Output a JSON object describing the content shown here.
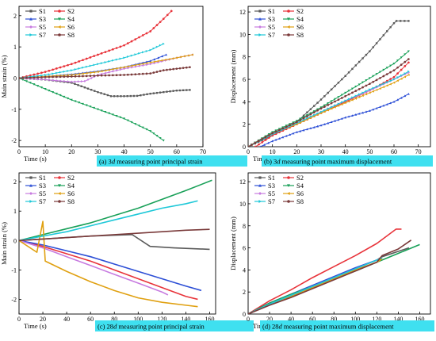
{
  "figure": {
    "background": "#ffffff",
    "caption_bg": "#3fe0f0"
  },
  "series_styles": [
    {
      "name": "S1",
      "color": "#5a5a5a",
      "marker": "square"
    },
    {
      "name": "S2",
      "color": "#e8333a",
      "marker": "circle"
    },
    {
      "name": "S3",
      "color": "#2d4fd6",
      "marker": "triangle-up"
    },
    {
      "name": "S4",
      "color": "#18a058",
      "marker": "triangle-down"
    },
    {
      "name": "S5",
      "color": "#c77be0",
      "marker": "diamond"
    },
    {
      "name": "S6",
      "color": "#e0a010",
      "marker": "triangle-left"
    },
    {
      "name": "S7",
      "color": "#1ec8d8",
      "marker": "triangle-right"
    },
    {
      "name": "S8",
      "color": "#7a3a3a",
      "marker": "hexagon"
    }
  ],
  "chart_data": [
    {
      "id": "a",
      "type": "line",
      "caption_prefix": "(a)  3",
      "caption_italic": "d",
      "caption_suffix": " measuring point principal strain",
      "xlabel": "Time (s)",
      "ylabel": "Main strain (%)",
      "xlim": [
        0,
        70
      ],
      "ylim": [
        -2.2,
        2.3
      ],
      "xticks": [
        0,
        10,
        20,
        30,
        40,
        50,
        60,
        70
      ],
      "yticks": [
        -2,
        -1,
        0,
        1,
        2
      ],
      "legend_placement": "top-left",
      "grid": false,
      "markers": true,
      "series": [
        {
          "name": "S1",
          "x": [
            0,
            10,
            20,
            25,
            30,
            35,
            40,
            45,
            50,
            55,
            60,
            65
          ],
          "y": [
            0,
            -0.05,
            -0.15,
            -0.3,
            -0.45,
            -0.58,
            -0.58,
            -0.57,
            -0.5,
            -0.45,
            -0.4,
            -0.38
          ]
        },
        {
          "name": "S2",
          "x": [
            0,
            10,
            20,
            30,
            40,
            50,
            55,
            58
          ],
          "y": [
            0,
            0.2,
            0.45,
            0.75,
            1.05,
            1.5,
            1.9,
            2.15
          ]
        },
        {
          "name": "S3",
          "x": [
            0,
            10,
            20,
            30,
            40,
            50,
            56
          ],
          "y": [
            0,
            0.05,
            0.12,
            0.22,
            0.35,
            0.55,
            0.75
          ]
        },
        {
          "name": "S4",
          "x": [
            0,
            10,
            20,
            30,
            40,
            50,
            55
          ],
          "y": [
            0,
            -0.35,
            -0.7,
            -1.0,
            -1.3,
            -1.7,
            -2.0
          ]
        },
        {
          "name": "S5",
          "x": [
            0,
            10,
            20,
            25,
            30,
            40,
            50,
            60,
            66
          ],
          "y": [
            0,
            -0.05,
            -0.12,
            -0.1,
            0.1,
            0.3,
            0.45,
            0.65,
            0.75
          ]
        },
        {
          "name": "S6",
          "x": [
            0,
            10,
            20,
            30,
            40,
            50,
            60,
            66
          ],
          "y": [
            0,
            0.05,
            0.1,
            0.2,
            0.35,
            0.5,
            0.65,
            0.75
          ]
        },
        {
          "name": "S7",
          "x": [
            0,
            10,
            20,
            30,
            40,
            50,
            55
          ],
          "y": [
            0,
            0.1,
            0.25,
            0.45,
            0.65,
            0.9,
            1.1
          ]
        },
        {
          "name": "S8",
          "x": [
            0,
            10,
            20,
            30,
            40,
            50,
            55,
            60,
            65
          ],
          "y": [
            0,
            0.03,
            0.05,
            0.08,
            0.1,
            0.15,
            0.25,
            0.3,
            0.35
          ]
        }
      ]
    },
    {
      "id": "b",
      "type": "line",
      "caption_prefix": "(b)  3",
      "caption_italic": "d",
      "caption_suffix": " measuring point maximum displacement",
      "xlabel": "Time (s)",
      "ylabel": "Displacement (mm)",
      "xlim": [
        0,
        75
      ],
      "ylim": [
        0,
        12.5
      ],
      "xticks": [
        0,
        10,
        20,
        30,
        40,
        50,
        60,
        70
      ],
      "yticks": [
        0,
        2,
        4,
        6,
        8,
        10,
        12
      ],
      "legend_placement": "top-left",
      "grid": false,
      "markers": true,
      "series": [
        {
          "name": "S1",
          "x": [
            0,
            10,
            20,
            30,
            40,
            50,
            60,
            61,
            66
          ],
          "y": [
            0,
            1.0,
            2.2,
            4.2,
            6.3,
            8.5,
            11.0,
            11.2,
            11.2
          ]
        },
        {
          "name": "S2",
          "x": [
            3,
            10,
            20,
            30,
            40,
            50,
            60,
            66
          ],
          "y": [
            0,
            1.0,
            2.0,
            3.0,
            4.0,
            5.0,
            6.2,
            7.5
          ]
        },
        {
          "name": "S3",
          "x": [
            5,
            10,
            20,
            30,
            40,
            50,
            60,
            66
          ],
          "y": [
            0,
            0.5,
            1.3,
            1.9,
            2.6,
            3.2,
            4.0,
            4.7
          ]
        },
        {
          "name": "S4",
          "x": [
            0,
            10,
            20,
            30,
            40,
            50,
            60,
            66
          ],
          "y": [
            0,
            1.3,
            2.3,
            3.5,
            4.8,
            6.1,
            7.4,
            8.5
          ]
        },
        {
          "name": "S5",
          "x": [
            0,
            10,
            20,
            30,
            40,
            50,
            60,
            66
          ],
          "y": [
            0,
            1.2,
            2.1,
            3.1,
            4.1,
            5.0,
            6.0,
            6.6
          ]
        },
        {
          "name": "S6",
          "x": [
            0,
            10,
            20,
            30,
            40,
            50,
            60,
            66
          ],
          "y": [
            0,
            1.2,
            2.0,
            3.0,
            3.9,
            4.8,
            5.7,
            6.4
          ]
        },
        {
          "name": "S7",
          "x": [
            0,
            10,
            20,
            30,
            40,
            50,
            60,
            66
          ],
          "y": [
            0,
            1.1,
            2.1,
            3.1,
            4.1,
            5.1,
            6.0,
            6.7
          ]
        },
        {
          "name": "S8",
          "x": [
            0,
            10,
            20,
            30,
            40,
            50,
            60,
            66
          ],
          "y": [
            0,
            1.2,
            2.2,
            3.4,
            4.5,
            5.6,
            6.8,
            7.8
          ]
        }
      ]
    },
    {
      "id": "c",
      "type": "line",
      "caption_prefix": "(c)  28",
      "caption_italic": "d",
      "caption_suffix": " measuring point principal strain",
      "xlabel": "Time (s)",
      "ylabel": "Main strain (%)",
      "xlim": [
        0,
        165
      ],
      "ylim": [
        -2.5,
        2.3
      ],
      "xticks": [
        0,
        20,
        40,
        60,
        80,
        100,
        120,
        140,
        160
      ],
      "yticks": [
        -2,
        -1,
        0,
        1,
        2
      ],
      "legend_placement": "top-left",
      "grid": false,
      "markers": false,
      "series": [
        {
          "name": "S1",
          "x": [
            0,
            20,
            40,
            60,
            80,
            95,
            110,
            130,
            160
          ],
          "y": [
            0,
            0.05,
            0.1,
            0.15,
            0.18,
            0.2,
            -0.2,
            -0.25,
            -0.3
          ]
        },
        {
          "name": "S2",
          "x": [
            0,
            20,
            40,
            60,
            80,
            100,
            120,
            140,
            150
          ],
          "y": [
            0,
            -0.2,
            -0.45,
            -0.7,
            -1.0,
            -1.3,
            -1.6,
            -1.9,
            -2.0
          ]
        },
        {
          "name": "S3",
          "x": [
            0,
            20,
            40,
            60,
            80,
            100,
            120,
            140,
            153
          ],
          "y": [
            0,
            -0.15,
            -0.35,
            -0.55,
            -0.8,
            -1.05,
            -1.3,
            -1.55,
            -1.7
          ]
        },
        {
          "name": "S4",
          "x": [
            0,
            20,
            40,
            60,
            80,
            100,
            120,
            140,
            162
          ],
          "y": [
            0,
            0.2,
            0.4,
            0.6,
            0.85,
            1.1,
            1.4,
            1.7,
            2.05
          ]
        },
        {
          "name": "S5",
          "x": [
            0,
            20,
            40,
            60,
            80,
            100,
            120,
            125
          ],
          "y": [
            0,
            -0.25,
            -0.55,
            -0.85,
            -1.15,
            -1.45,
            -1.75,
            -1.85
          ]
        },
        {
          "name": "S6",
          "x": [
            0,
            15,
            20,
            22,
            40,
            60,
            80,
            100,
            120,
            140,
            150
          ],
          "y": [
            0,
            -0.4,
            0.65,
            -0.7,
            -1.05,
            -1.4,
            -1.7,
            -1.95,
            -2.1,
            -2.2,
            -2.25
          ]
        },
        {
          "name": "S7",
          "x": [
            0,
            20,
            40,
            60,
            80,
            100,
            120,
            140,
            150
          ],
          "y": [
            0,
            0.15,
            0.3,
            0.5,
            0.7,
            0.9,
            1.1,
            1.25,
            1.35
          ]
        },
        {
          "name": "S8",
          "x": [
            0,
            20,
            40,
            60,
            80,
            100,
            120,
            140,
            160
          ],
          "y": [
            0,
            0.05,
            0.1,
            0.15,
            0.2,
            0.25,
            0.3,
            0.35,
            0.38
          ]
        }
      ]
    },
    {
      "id": "d",
      "type": "line",
      "caption_prefix": "(d)  28",
      "caption_italic": "d",
      "caption_suffix": " measuring point maximum displacement",
      "xlabel": "Time (s)",
      "ylabel": "Displacement (mm)",
      "xlim": [
        0,
        170
      ],
      "ylim": [
        0,
        12.8
      ],
      "xticks": [
        0,
        20,
        40,
        60,
        80,
        100,
        120,
        140,
        160
      ],
      "yticks": [
        0,
        2,
        4,
        6,
        8,
        10,
        12
      ],
      "legend_placement": "top-left",
      "grid": false,
      "markers": false,
      "series": [
        {
          "name": "S1",
          "x": [
            0,
            20,
            40,
            60,
            80,
            100,
            120,
            125,
            150
          ],
          "y": [
            0,
            0.9,
            1.7,
            2.5,
            3.3,
            4.1,
            4.9,
            5.2,
            6.0
          ]
        },
        {
          "name": "S2",
          "x": [
            0,
            20,
            40,
            60,
            80,
            100,
            120,
            138,
            143
          ],
          "y": [
            0,
            1.2,
            2.2,
            3.3,
            4.3,
            5.3,
            6.4,
            7.7,
            7.7
          ]
        },
        {
          "name": "S3",
          "x": [
            0,
            20,
            40,
            60,
            80,
            100,
            120,
            125
          ],
          "y": [
            0,
            1.0,
            1.8,
            2.6,
            3.4,
            4.2,
            4.9,
            5.1
          ]
        },
        {
          "name": "S4",
          "x": [
            0,
            20,
            40,
            60,
            80,
            100,
            120,
            140,
            160
          ],
          "y": [
            0,
            1.0,
            1.8,
            2.5,
            3.2,
            3.9,
            4.7,
            5.5,
            6.3
          ]
        },
        {
          "name": "S5",
          "x": [
            0,
            20,
            40,
            60,
            80,
            100,
            120,
            125
          ],
          "y": [
            0,
            0.9,
            1.7,
            2.5,
            3.3,
            4.1,
            4.9,
            5.1
          ]
        },
        {
          "name": "S6",
          "x": [
            0,
            20,
            40,
            60,
            80,
            100,
            120,
            125
          ],
          "y": [
            0,
            0.9,
            1.6,
            2.4,
            3.2,
            4.0,
            4.7,
            5.0
          ]
        },
        {
          "name": "S7",
          "x": [
            0,
            20,
            40,
            60,
            80,
            100,
            120,
            125
          ],
          "y": [
            0,
            0.9,
            1.7,
            2.5,
            3.3,
            4.1,
            4.9,
            5.1
          ]
        },
        {
          "name": "S8",
          "x": [
            0,
            20,
            40,
            60,
            80,
            100,
            120,
            125,
            140,
            152
          ],
          "y": [
            0,
            0.8,
            1.5,
            2.3,
            3.1,
            3.9,
            4.7,
            5.3,
            5.9,
            6.7
          ]
        }
      ]
    }
  ]
}
